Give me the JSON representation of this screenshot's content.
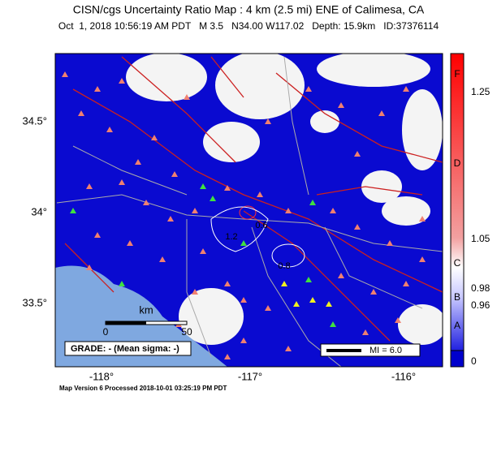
{
  "header": {
    "title": "CISN/cgs Uncertainty Ratio Map : 4 km (2.5 mi) ENE of Calimesa, CA",
    "subtitle": "Oct  1, 2018 10:56:19 AM PDT   M 3.5   N34.00 W117.02   Depth: 15.9km   ID:37376114"
  },
  "map": {
    "lat_labels": [
      "34.5°",
      "34°",
      "33.5°"
    ],
    "lon_labels": [
      "-118°",
      "-117°",
      "-116°"
    ],
    "scale_bar": {
      "unit": "km",
      "labels": [
        "0",
        "50"
      ]
    },
    "grade": "GRADE: - (Mean sigma: -)",
    "mi_legend": "MI = 6.0",
    "contour_labels": [
      "0.6",
      "1.2",
      "0.8"
    ]
  },
  "colorbar": {
    "letters": [
      "F",
      "D",
      "C",
      "B",
      "A"
    ],
    "values": [
      "1.25",
      "1.05",
      "0.98",
      "0.96",
      "0"
    ]
  },
  "footer": "Map Version 6 Processed 2018-10-01 03:25:19 PM PDT"
}
